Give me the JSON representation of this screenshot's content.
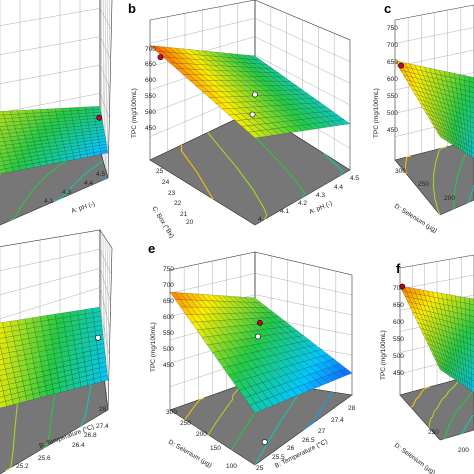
{
  "colors": {
    "low": "#1a1aff",
    "mid1": "#00c8ff",
    "mid2": "#22cc44",
    "mid3": "#ffee00",
    "high": "#ff2a00",
    "floor": "#777777",
    "point": "#d4002a"
  },
  "chart_data": [
    {
      "panel": "a",
      "type": "surface",
      "zlabel": "",
      "zticks": [],
      "x_axis": {
        "label": "A: pH (-)",
        "ticks": [
          "4.1",
          "4.3",
          "4.4",
          "4.5"
        ]
      },
      "y_axis": {
        "label": "",
        "ticks": []
      }
    },
    {
      "panel": "b",
      "type": "surface",
      "zlabel": "TPC (mg/100mL)",
      "zticks": [
        "450",
        "500",
        "550",
        "600",
        "650",
        "700"
      ],
      "x_axis": {
        "label": "A: pH (-)",
        "ticks": [
          "4",
          "4.1",
          "4.2",
          "4.3",
          "4.4",
          "4.5"
        ]
      },
      "y_axis": {
        "label": "C: Brix (°Bx)",
        "ticks": [
          "20",
          "21",
          "22",
          "23",
          "24",
          "25"
        ]
      }
    },
    {
      "panel": "c",
      "type": "surface",
      "zlabel": "TPC (mg/100mL)",
      "zticks": [
        "450",
        "500",
        "550",
        "600",
        "650",
        "700",
        "750"
      ],
      "x_axis": {
        "label": "",
        "ticks": []
      },
      "y_axis": {
        "label": "D: Selenium (µg)",
        "ticks": [
          "200",
          "250",
          "300"
        ]
      }
    },
    {
      "panel": "d",
      "type": "surface",
      "zlabel": "",
      "zticks": [],
      "x_axis": {
        "label": "B: Temperature (°C)",
        "ticks": [
          "25.2",
          "25.6",
          "26.4",
          "26.8",
          "27.4",
          "28"
        ]
      },
      "y_axis": {
        "label": "",
        "ticks": []
      }
    },
    {
      "panel": "e",
      "type": "surface",
      "zlabel": "TPC (mg/100mL)",
      "zticks": [
        "450",
        "500",
        "550",
        "600",
        "650",
        "700",
        "750"
      ],
      "x_axis": {
        "label": "B: Temperature (°C)",
        "ticks": [
          "25",
          "25.5",
          "26",
          "26.5",
          "27",
          "27.4",
          "28"
        ]
      },
      "y_axis": {
        "label": "D: Selenium (µg)",
        "ticks": [
          "100",
          "150",
          "200",
          "250",
          "300"
        ]
      }
    },
    {
      "panel": "f",
      "type": "surface",
      "zlabel": "TPC (mg/100mL)",
      "zticks": [
        "450",
        "500",
        "550",
        "600",
        "650",
        "700"
      ],
      "x_axis": {
        "label": "",
        "ticks": []
      },
      "y_axis": {
        "label": "D: Selenium (µg)",
        "ticks": [
          "250",
          "200"
        ]
      }
    }
  ]
}
